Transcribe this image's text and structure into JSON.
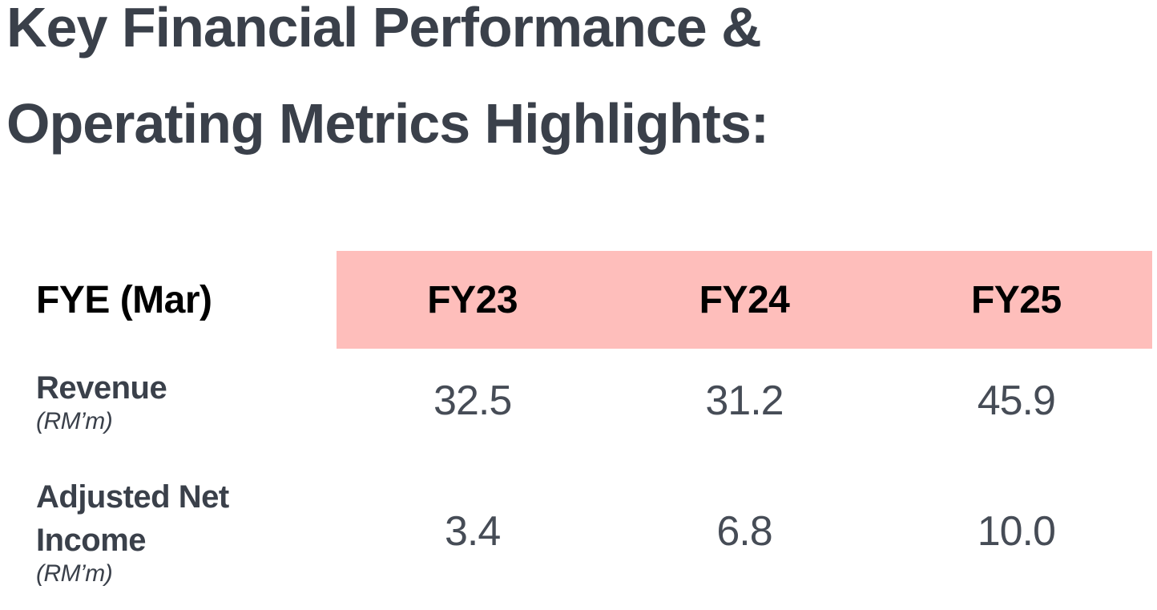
{
  "title": {
    "line1": "Key Financial Performance &",
    "line2": "Operating Metrics Highlights:"
  },
  "colors": {
    "title_text": "#3A404A",
    "header_text": "#000000",
    "header_highlight_bg": "#FEBEBB",
    "header_label_bg": "#FFFFFF",
    "metric_text": "#3A404A",
    "value_text": "#464C56",
    "page_bg": "#FFFFFF"
  },
  "table": {
    "header": {
      "label": "FYE (Mar)",
      "periods": [
        "FY23",
        "FY24",
        "FY25"
      ]
    },
    "rows": [
      {
        "metric": "Revenue",
        "unit": "(RM’m)",
        "values": [
          "32.5",
          "31.2",
          "45.9"
        ]
      },
      {
        "metric": "Adjusted Net Income",
        "unit": "(RM’m)",
        "values": [
          "3.4",
          "6.8",
          "10.0"
        ]
      }
    ]
  }
}
